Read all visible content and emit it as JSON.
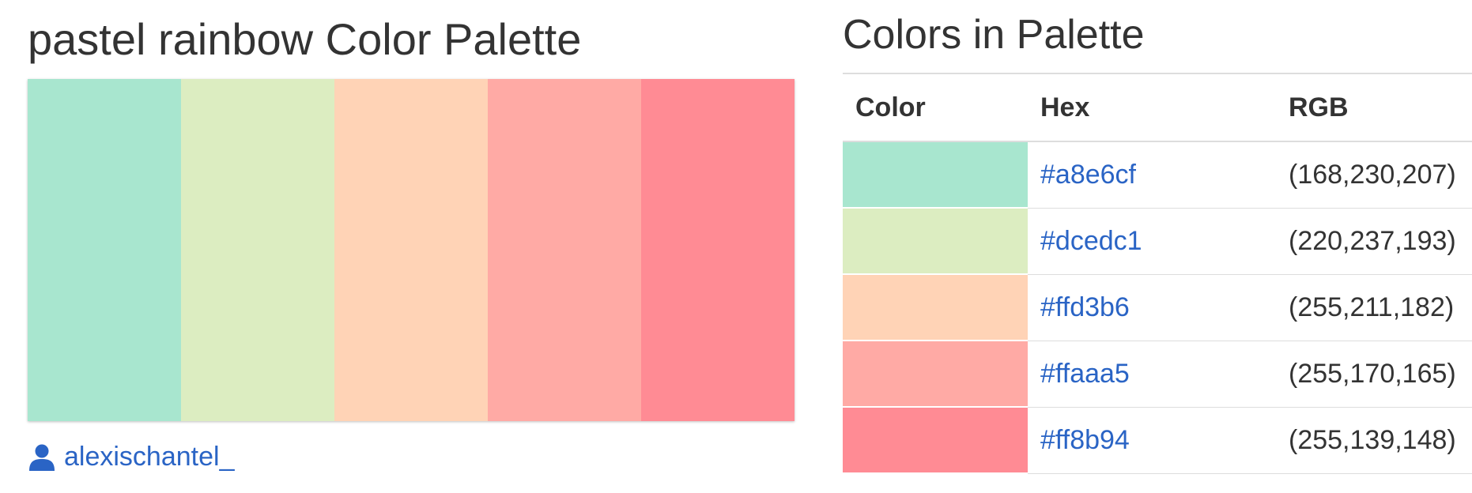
{
  "page": {
    "title": "pastel rainbow Color Palette",
    "author": "alexischantel_",
    "author_icon": "user-icon",
    "link_color": "#2a64c5"
  },
  "palette": {
    "colors": [
      "#a8e6cf",
      "#dcedc1",
      "#ffd3b6",
      "#ffaaa5",
      "#ff8b94"
    ]
  },
  "table": {
    "title": "Colors in Palette",
    "headers": {
      "color": "Color",
      "hex": "Hex",
      "rgb": "RGB"
    },
    "rows": [
      {
        "color": "#a8e6cf",
        "hex": "#a8e6cf",
        "rgb": "(168,230,207)"
      },
      {
        "color": "#dcedc1",
        "hex": "#dcedc1",
        "rgb": "(220,237,193)"
      },
      {
        "color": "#ffd3b6",
        "hex": "#ffd3b6",
        "rgb": "(255,211,182)"
      },
      {
        "color": "#ffaaa5",
        "hex": "#ffaaa5",
        "rgb": "(255,170,165)"
      },
      {
        "color": "#ff8b94",
        "hex": "#ff8b94",
        "rgb": "(255,139,148)"
      }
    ]
  }
}
